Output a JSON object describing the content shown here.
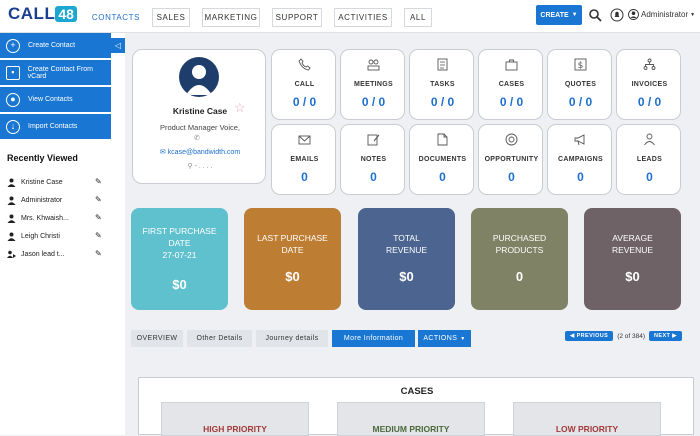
{
  "brand": {
    "logo_text": "CALL",
    "logo_badge": "48"
  },
  "nav": {
    "tabs": [
      "CONTACTS",
      "SALES",
      "MARKETING",
      "SUPPORT",
      "ACTIVITIES",
      "ALL"
    ],
    "create_label": "CREATE",
    "user_label": "Administrator"
  },
  "sidebar": {
    "actions": [
      "Create Contact",
      "Create Contact From vCard",
      "View Contacts",
      "Import Contacts"
    ],
    "recent_title": "Recently Viewed",
    "recent": [
      "Kristine Case",
      "Administrator",
      "Mrs. Khwaish...",
      "Leigh Christi",
      "Jason lead t..."
    ]
  },
  "profile": {
    "name": "Kristine Case",
    "title": "Product Manager Voice,",
    "email": "kcase@bandwidth.com",
    "location": "- . . . ."
  },
  "stats": [
    {
      "label": "CALL",
      "value": "0 / 0",
      "icon": "phone-icon"
    },
    {
      "label": "MEETINGS",
      "value": "0 / 0",
      "icon": "meetings-icon"
    },
    {
      "label": "TASKS",
      "value": "0 / 0",
      "icon": "tasks-icon"
    },
    {
      "label": "CASES",
      "value": "0 / 0",
      "icon": "cases-icon"
    },
    {
      "label": "QUOTES",
      "value": "0 / 0",
      "icon": "quotes-icon"
    },
    {
      "label": "INVOICES",
      "value": "0 / 0",
      "icon": "invoices-icon"
    },
    {
      "label": "EMAILS",
      "value": "0",
      "icon": "email-icon"
    },
    {
      "label": "NOTES",
      "value": "0",
      "icon": "notes-icon"
    },
    {
      "label": "DOCUMENTS",
      "value": "0",
      "icon": "documents-icon"
    },
    {
      "label": "OPPORTUNITY",
      "value": "0",
      "icon": "opportunity-icon"
    },
    {
      "label": "CAMPAIGNS",
      "value": "0",
      "icon": "campaigns-icon"
    },
    {
      "label": "LEADS",
      "value": "0",
      "icon": "leads-icon"
    }
  ],
  "kpis": [
    {
      "label": "FIRST PURCHASE\nDATE\n27-07-21",
      "value": "$0",
      "color": "#5fc1cd"
    },
    {
      "label": "LAST PURCHASE\nDATE",
      "value": "$0",
      "color": "#bd7d33"
    },
    {
      "label": "TOTAL\nREVENUE",
      "value": "$0",
      "color": "#4c6590"
    },
    {
      "label": "PURCHASED\nPRODUCTS",
      "value": "0",
      "color": "#7f8264"
    },
    {
      "label": "AVERAGE\nREVENUE",
      "value": "$0",
      "color": "#6e6266"
    }
  ],
  "detail_tabs": [
    "OVERVIEW",
    "Other Details",
    "Journey details",
    "More Information",
    "ACTIONS"
  ],
  "pager": {
    "prev": "PREVIOUS",
    "count": "(2 of 384)",
    "next": "NEXT"
  },
  "cases": {
    "title": "CASES",
    "priorities": [
      {
        "label": "HIGH PRIORITY",
        "color": "#a33a3a"
      },
      {
        "label": "MEDIUM PRIORITY",
        "color": "#4a6a3a"
      },
      {
        "label": "LOW PRIORITY",
        "color": "#a33a3a"
      }
    ]
  }
}
